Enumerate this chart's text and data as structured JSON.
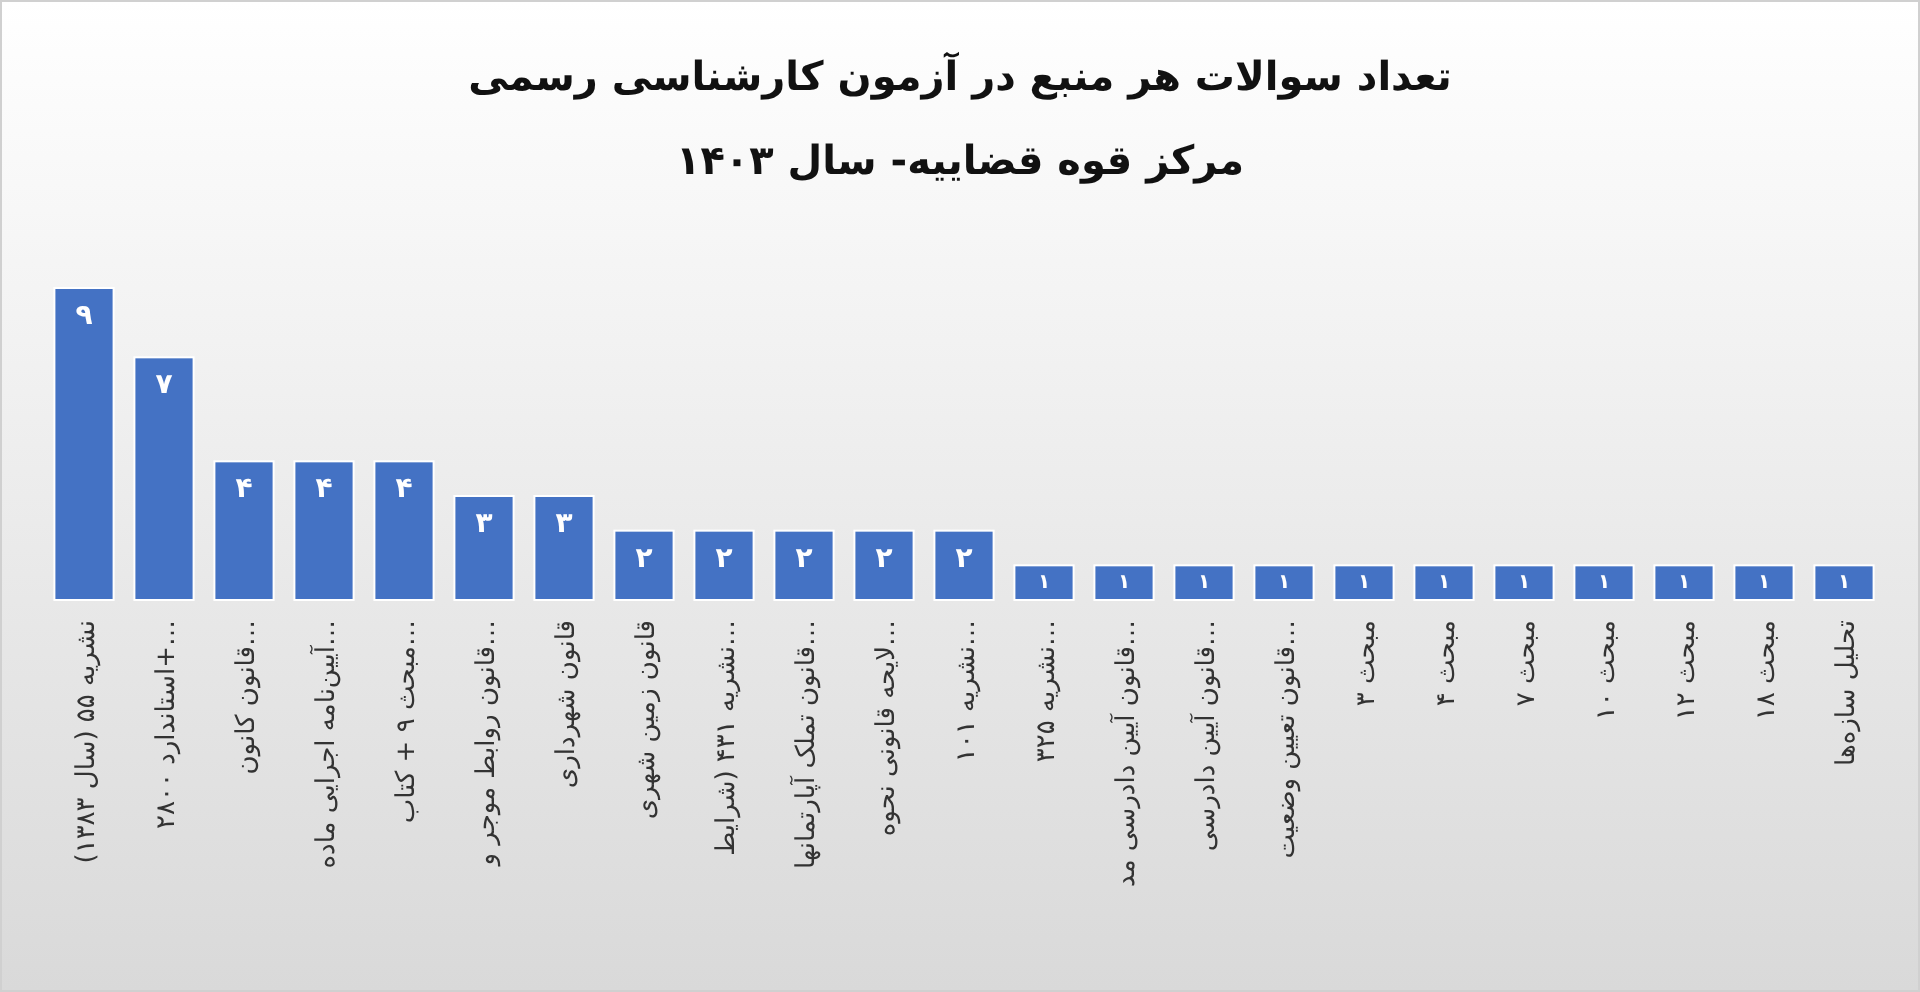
{
  "chart_data": {
    "type": "bar",
    "title": "تعداد سوالات هر منبع در آزمون کارشناسی رسمی",
    "subtitle": "مرکز قوه قضاییه- سال ۱۴۰۳",
    "categories": [
      "نشریه ۵۵ (سال ۱۳۸۳)",
      "استاندارد ۲۸۰۰+…",
      "قانون کانون…",
      "آیین‌نامه اجرایی ماده…",
      "مبحث ۹ + کتاب…",
      "قانون روابط موجر و…",
      "قانون شهرداری",
      "قانون زمین شهری",
      "نشریه ۴۳۱ (شرایط…",
      "قانون تملک آپارتمانها…",
      "لایحه قانونی نحوه…",
      "نشریه ۱۰۱…",
      "نشریه ۳۲۵…",
      "قانون آیین دادرسی مد…",
      "قانون آیین دادرسی…",
      "قانون تعیین وضعیت…",
      "مبحث ۳",
      "مبحث ۴",
      "مبحث ۷",
      "مبحث ۱۰",
      "مبحث ۱۲",
      "مبحث ۱۸",
      "تحلیل سازه‌ها"
    ],
    "values": [
      9,
      7,
      4,
      4,
      4,
      3,
      3,
      2,
      2,
      2,
      2,
      2,
      1,
      1,
      1,
      1,
      1,
      1,
      1,
      1,
      1,
      1,
      1
    ],
    "value_labels": [
      "۹",
      "۷",
      "۴",
      "۴",
      "۴",
      "۳",
      "۳",
      "۲",
      "۲",
      "۲",
      "۲",
      "۲",
      "۱",
      "۱",
      "۱",
      "۱",
      "۱",
      "۱",
      "۱",
      "۱",
      "۱",
      "۱",
      "۱"
    ],
    "color": "#4472c4"
  }
}
